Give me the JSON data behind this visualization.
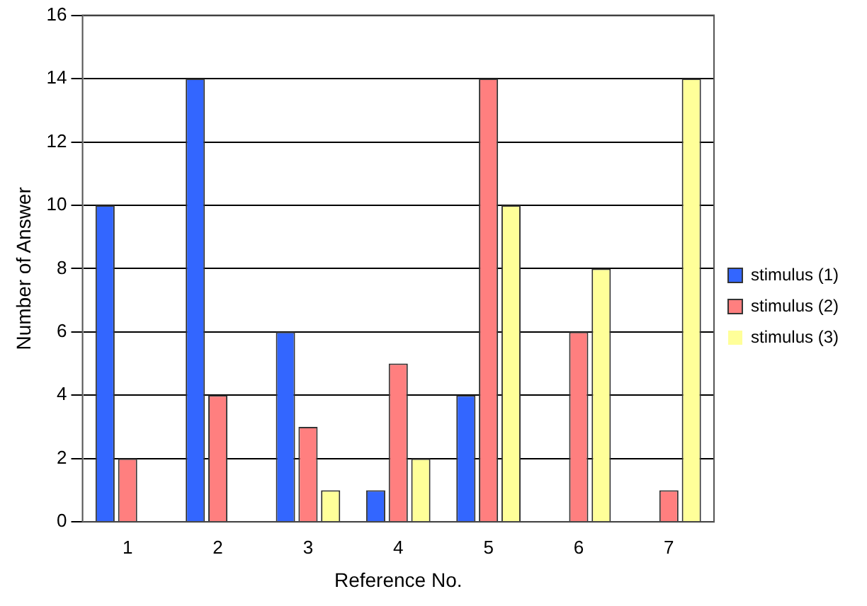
{
  "chart_data": {
    "type": "bar",
    "xlabel": "Reference No.",
    "ylabel": "Number of Answer",
    "categories": [
      "1",
      "2",
      "3",
      "4",
      "5",
      "6",
      "7"
    ],
    "series": [
      {
        "name": "stimulus (1)",
        "color": "#3366ff",
        "values": [
          10,
          14,
          6,
          1,
          4,
          0,
          0
        ]
      },
      {
        "name": "stimulus (2)",
        "color": "#ff7f7f",
        "values": [
          2,
          4,
          3,
          5,
          14,
          6,
          1
        ]
      },
      {
        "name": "stimulus (3)",
        "color": "#ffff99",
        "values": [
          0,
          0,
          1,
          2,
          10,
          8,
          14
        ]
      }
    ],
    "ylim": [
      0,
      16
    ],
    "yticks": [
      0,
      2,
      4,
      6,
      8,
      10,
      12,
      14,
      16
    ],
    "grid": "y",
    "legend": "right"
  }
}
